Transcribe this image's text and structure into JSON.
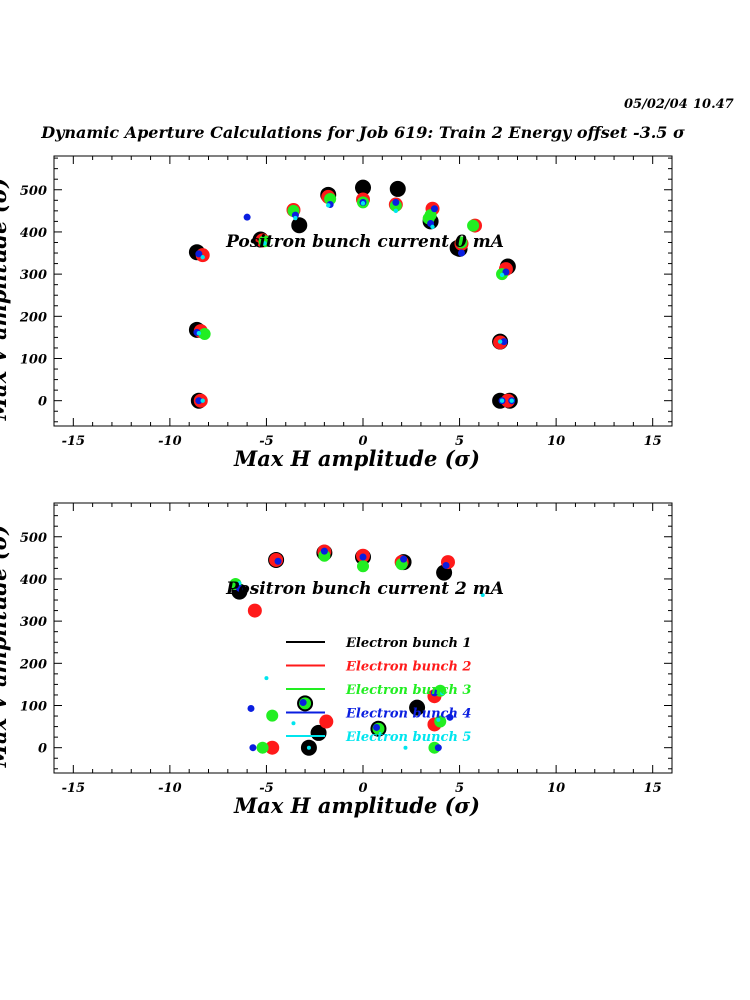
{
  "header": {
    "date": "05/02/04",
    "time": "10.47",
    "title": "Dynamic Aperture Calculations for Job 619:  Train 2   Energy offset  -3.5 σ"
  },
  "colors": {
    "bunch1": "#000000",
    "bunch2": "#ff1a1a",
    "bunch3": "#22ee22",
    "bunch4": "#0a1ee0",
    "bunch5": "#00e5ee"
  },
  "chart_data": [
    {
      "type": "scatter",
      "xlabel": "Max H amplitude (σ)",
      "ylabel": "Max V amplitude (σ)",
      "annotation": "Positron bunch current  0 mA",
      "xlim": [
        -16,
        16
      ],
      "ylim": [
        -60,
        580
      ],
      "xticks": [
        -15,
        -10,
        -5,
        0,
        5,
        10,
        15
      ],
      "yticks": [
        0,
        100,
        200,
        300,
        400,
        500
      ],
      "grid": false,
      "series": [
        {
          "name": "Electron bunch 1",
          "color": "#000000",
          "r": 8,
          "points": [
            [
              -8.5,
              0
            ],
            [
              7.6,
              0
            ],
            [
              7.1,
              0
            ],
            [
              -8.6,
              168
            ],
            [
              7.1,
              140
            ],
            [
              -8.6,
              352
            ],
            [
              -5.3,
              382
            ],
            [
              -3.3,
              416
            ],
            [
              -1.8,
              488
            ],
            [
              0,
              505
            ],
            [
              1.8,
              502
            ],
            [
              3.5,
              425
            ],
            [
              5,
              360
            ],
            [
              7.5,
              318
            ],
            [
              4.9,
              362
            ]
          ]
        },
        {
          "name": "Electron bunch 2",
          "color": "#ff1a1a",
          "r": 7,
          "points": [
            [
              -8.4,
              0
            ],
            [
              7.5,
              0
            ],
            [
              -8.4,
              165
            ],
            [
              7.1,
              138
            ],
            [
              -8.3,
              345
            ],
            [
              -5.2,
              380
            ],
            [
              -3.6,
              452
            ],
            [
              -1.8,
              483
            ],
            [
              0,
              477
            ],
            [
              1.7,
              465
            ],
            [
              3.6,
              455
            ],
            [
              5.8,
              415
            ],
            [
              7.4,
              312
            ],
            [
              5.1,
              372
            ]
          ]
        },
        {
          "name": "Electron bunch 3",
          "color": "#22ee22",
          "r": 6,
          "points": [
            [
              -8.2,
              158
            ],
            [
              -5.1,
              378
            ],
            [
              -3.6,
              450
            ],
            [
              -1.7,
              478
            ],
            [
              0,
              470
            ],
            [
              1.7,
              462
            ],
            [
              3.5,
              440
            ],
            [
              5.7,
              415
            ],
            [
              7.2,
              300
            ],
            [
              5.1,
              375
            ],
            [
              3.4,
              432
            ]
          ]
        },
        {
          "name": "Electron bunch 4",
          "color": "#0a1ee0",
          "r": 3.5,
          "points": [
            [
              -8.5,
              0
            ],
            [
              7.2,
              0
            ],
            [
              7.7,
              0
            ],
            [
              -8.6,
              162
            ],
            [
              7.3,
              140
            ],
            [
              -8.5,
              348
            ],
            [
              -6,
              435
            ],
            [
              -3.5,
              440
            ],
            [
              -1.7,
              465
            ],
            [
              0,
              470
            ],
            [
              1.7,
              470
            ],
            [
              3.7,
              455
            ],
            [
              5.1,
              350
            ],
            [
              7.4,
              305
            ],
            [
              3.5,
              420
            ]
          ]
        },
        {
          "name": "Electron bunch 5",
          "color": "#00e5ee",
          "r": 2.2,
          "points": [
            [
              -8.3,
              0
            ],
            [
              7.2,
              0
            ],
            [
              7.7,
              0
            ],
            [
              -8.5,
              160
            ],
            [
              7.1,
              140
            ],
            [
              -8.3,
              340
            ],
            [
              -5.1,
              373
            ],
            [
              -3.5,
              433
            ],
            [
              -1.8,
              463
            ],
            [
              0,
              468
            ],
            [
              1.7,
              450
            ],
            [
              3.6,
              412
            ],
            [
              7.2,
              298
            ]
          ]
        }
      ]
    },
    {
      "type": "scatter",
      "xlabel": "Max H amplitude (σ)",
      "ylabel": "Max V amplitude (σ)",
      "annotation": "Positron bunch current  2 mA",
      "xlim": [
        -16,
        16
      ],
      "ylim": [
        -60,
        580
      ],
      "xticks": [
        -15,
        -10,
        -5,
        0,
        5,
        10,
        15
      ],
      "yticks": [
        0,
        100,
        200,
        300,
        400,
        500
      ],
      "grid": false,
      "legend_position": "center",
      "series": [
        {
          "name": "Electron bunch 1",
          "color": "#000000",
          "r": 8,
          "points": [
            [
              -6.4,
              370
            ],
            [
              -4.5,
              445
            ],
            [
              -2.8,
              0
            ],
            [
              -2.3,
              35
            ],
            [
              -3,
              105
            ],
            [
              0.8,
              45
            ],
            [
              2.8,
              95
            ],
            [
              4.2,
              415
            ],
            [
              2.1,
              440
            ],
            [
              0,
              452
            ],
            [
              -2,
              462
            ]
          ]
        },
        {
          "name": "Electron bunch 2",
          "color": "#ff1a1a",
          "r": 7,
          "points": [
            [
              -5.6,
              325
            ],
            [
              -4.7,
              0
            ],
            [
              -1.9,
              62
            ],
            [
              3.7,
              122
            ],
            [
              3.7,
              55
            ],
            [
              4.4,
              440
            ],
            [
              2,
              440
            ],
            [
              0,
              455
            ],
            [
              -2,
              465
            ],
            [
              -4.5,
              445
            ]
          ]
        },
        {
          "name": "Electron bunch 3",
          "color": "#22ee22",
          "r": 6,
          "points": [
            [
              -6.6,
              388
            ],
            [
              -5.2,
              0
            ],
            [
              -4.7,
              76
            ],
            [
              -3,
              105
            ],
            [
              0.8,
              45
            ],
            [
              3.7,
              0
            ],
            [
              4,
              62
            ],
            [
              4,
              135
            ],
            [
              2,
              435
            ],
            [
              0,
              430
            ],
            [
              -2,
              455
            ]
          ]
        },
        {
          "name": "Electron bunch 4",
          "color": "#0a1ee0",
          "r": 3.5,
          "points": [
            [
              -6.4,
              378
            ],
            [
              -5.7,
              0
            ],
            [
              -5.8,
              93
            ],
            [
              -3.1,
              107
            ],
            [
              0.7,
              48
            ],
            [
              3.7,
              130
            ],
            [
              3.9,
              0
            ],
            [
              4.5,
              72
            ],
            [
              4.3,
              432
            ],
            [
              2.1,
              447
            ],
            [
              0,
              452
            ],
            [
              -2,
              466
            ],
            [
              -4.4,
              442
            ]
          ]
        },
        {
          "name": "Electron bunch 5",
          "color": "#00e5ee",
          "r": 2,
          "points": [
            [
              -5,
              165
            ],
            [
              -3.6,
              58
            ],
            [
              -2.8,
              0
            ],
            [
              2.2,
              0
            ],
            [
              6.2,
              362
            ],
            [
              -6.4,
              390
            ],
            [
              3.9,
              66
            ],
            [
              4.1,
              129
            ]
          ]
        }
      ]
    }
  ]
}
